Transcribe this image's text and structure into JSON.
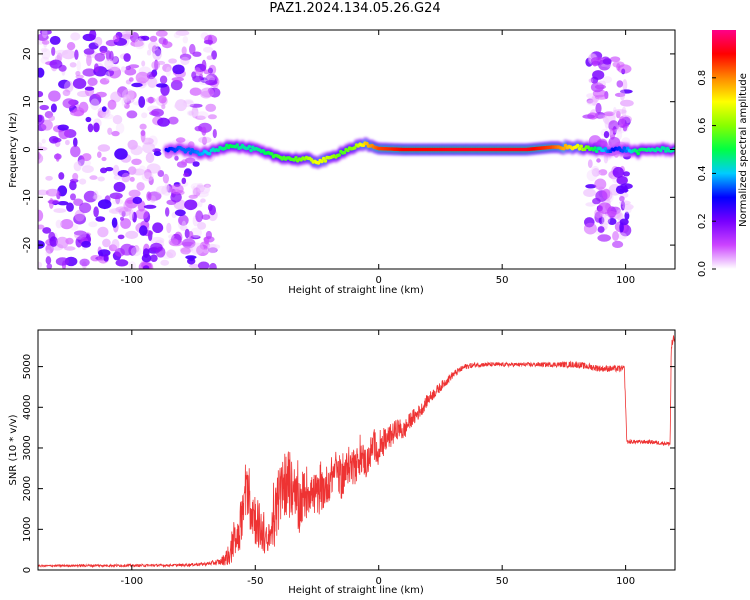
{
  "title": "PAZ1.2024.134.05.26.G24",
  "chart_data": [
    {
      "type": "heatmap",
      "xlabel": "Height of straight line (km)",
      "ylabel": "Frequency (Hz)",
      "xlim": [
        -138,
        120
      ],
      "ylim": [
        -25,
        25
      ],
      "xticks": [
        -100,
        -50,
        0,
        50,
        100
      ],
      "yticks": [
        -20,
        -10,
        0,
        10,
        20
      ],
      "colorbar": {
        "label": "Normalized spectral amplitude",
        "range": [
          0,
          1
        ],
        "ticks": [
          0.0,
          0.2,
          0.4,
          0.6,
          0.8
        ],
        "colors": [
          "#ffffff",
          "#cc44ff",
          "#7700ff",
          "#0000ff",
          "#00ccff",
          "#00ff44",
          "#88ff00",
          "#ffff00",
          "#ff8800",
          "#ff0000",
          "#ff0088"
        ]
      },
      "ridge": {
        "x": [
          -86,
          -80,
          -75,
          -70,
          -65,
          -60,
          -55,
          -50,
          -45,
          -40,
          -35,
          -30,
          -25,
          -20,
          -15,
          -10,
          -5,
          0,
          10,
          20,
          30,
          40,
          50,
          60,
          70,
          80,
          87,
          95,
          100,
          105,
          110,
          120
        ],
        "y": [
          0,
          0,
          -0.5,
          -0.8,
          0,
          1,
          0.5,
          0,
          -1,
          -1.5,
          -2,
          -2,
          -2.5,
          -2,
          -0.5,
          0.5,
          1,
          0.2,
          0,
          0,
          0,
          0,
          0,
          0,
          0.5,
          0.5,
          0,
          0,
          0,
          -0.5,
          0,
          0
        ],
        "amplitude": [
          0.3,
          0.35,
          0.35,
          0.4,
          0.45,
          0.5,
          0.45,
          0.45,
          0.5,
          0.55,
          0.55,
          0.6,
          0.7,
          0.65,
          0.55,
          0.6,
          0.75,
          0.85,
          0.9,
          0.9,
          0.92,
          0.92,
          0.92,
          0.92,
          0.85,
          0.7,
          0.5,
          0.3,
          0.35,
          0.5,
          0.45,
          0.45
        ]
      },
      "noise_regions": [
        [
          -138,
          -66
        ],
        [
          85,
          101
        ]
      ]
    },
    {
      "type": "line",
      "xlabel": "Height of straight line (km)",
      "ylabel": "SNR (10 * v/v)",
      "xlim": [
        -138,
        120
      ],
      "ylim": [
        0,
        5900
      ],
      "xticks": [
        -100,
        -50,
        0,
        50,
        100
      ],
      "yticks": [
        0,
        1000,
        2000,
        3000,
        4000,
        5000
      ],
      "series": [
        {
          "color": "#ee3333",
          "x": [
            -138,
            -120,
            -100,
            -80,
            -70,
            -64,
            -60,
            -57,
            -55,
            -53,
            -50,
            -47,
            -45,
            -42,
            -40,
            -37,
            -35,
            -32,
            -30,
            -28,
            -25,
            -22,
            -20,
            -17,
            -15,
            -12,
            -10,
            -7,
            -5,
            -2,
            0,
            3,
            5,
            8,
            10,
            13,
            15,
            18,
            20,
            25,
            30,
            35,
            40,
            50,
            60,
            70,
            80,
            90,
            99.5,
            100.5,
            110,
            118,
            118.5,
            120
          ],
          "y": [
            100,
            110,
            110,
            120,
            150,
            200,
            400,
            900,
            1500,
            1800,
            1300,
            900,
            600,
            1300,
            1800,
            2200,
            1700,
            1600,
            1900,
            2000,
            1800,
            2000,
            2200,
            2500,
            2200,
            2600,
            2500,
            2800,
            2600,
            3100,
            2900,
            3200,
            3300,
            3500,
            3400,
            3700,
            3800,
            4000,
            4200,
            4500,
            4800,
            5000,
            5050,
            5050,
            5050,
            5050,
            5050,
            4950,
            4950,
            3150,
            3150,
            3100,
            5500,
            5700
          ],
          "jitter": [
            20,
            30,
            30,
            30,
            40,
            80,
            300,
            600,
            700,
            700,
            700,
            500,
            400,
            700,
            800,
            800,
            700,
            700,
            700,
            600,
            500,
            500,
            500,
            500,
            500,
            450,
            450,
            400,
            400,
            400,
            350,
            300,
            300,
            250,
            250,
            200,
            200,
            150,
            150,
            120,
            90,
            70,
            60,
            50,
            50,
            60,
            80,
            80,
            80,
            50,
            50,
            50,
            150,
            150
          ]
        }
      ]
    }
  ]
}
